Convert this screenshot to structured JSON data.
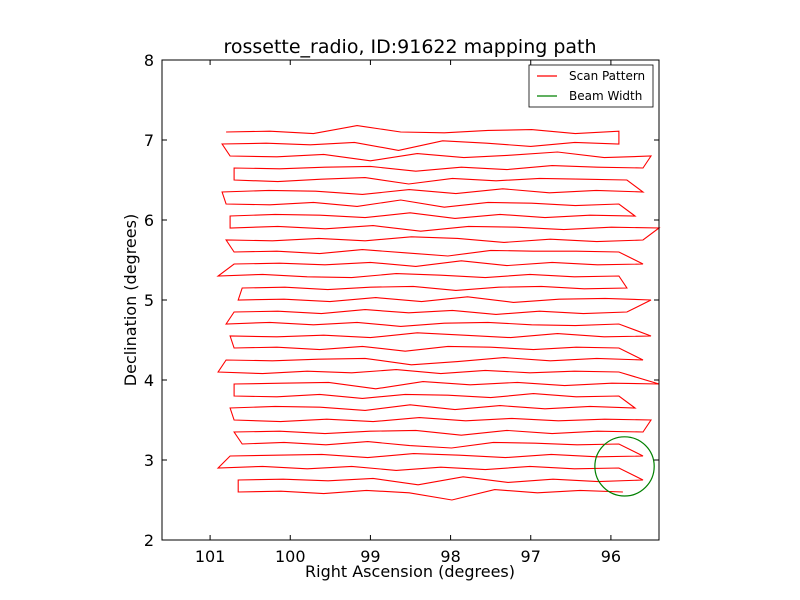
{
  "chart_data": {
    "type": "line",
    "title": "rossette_radio, ID:91622 mapping path",
    "xlabel": "Right Ascension (degrees)",
    "ylabel": "Declination (degrees)",
    "xlim": [
      101.6,
      95.4
    ],
    "ylim": [
      2,
      8
    ],
    "x_inverted": true,
    "xticks": [
      101,
      100,
      99,
      98,
      97,
      96
    ],
    "yticks": [
      2,
      3,
      4,
      5,
      6,
      7,
      8
    ],
    "grid": false,
    "legend": {
      "placement": "top-right",
      "entries": [
        {
          "label": "Scan Pattern",
          "color": "#ff0000"
        },
        {
          "label": "Beam Width",
          "color": "#008000"
        }
      ]
    },
    "series": [
      {
        "name": "Scan Pattern",
        "color": "#ff0000",
        "rows": [
          {
            "dec": 7.1,
            "ra_start": 100.8,
            "ra_end": 95.9,
            "jitter": [
              0,
              0.01,
              -0.02,
              0.08,
              0,
              -0.01,
              0.02,
              0.03,
              -0.02,
              0.01
            ]
          },
          {
            "dec": 6.95,
            "ra_start": 95.9,
            "ra_end": 100.85,
            "jitter": [
              0,
              0.02,
              -0.03,
              0.01,
              0.04,
              -0.08,
              0.02,
              -0.01,
              0.01,
              0
            ]
          },
          {
            "dec": 6.8,
            "ra_start": 100.75,
            "ra_end": 95.5,
            "jitter": [
              0,
              -0.01,
              0.02,
              -0.06,
              0.03,
              -0.02,
              0.01,
              0.05,
              -0.02,
              0
            ]
          },
          {
            "dec": 6.65,
            "ra_start": 95.6,
            "ra_end": 100.7,
            "jitter": [
              0,
              0.01,
              0.03,
              -0.02,
              0.01,
              -0.04,
              0.02,
              0.01,
              -0.01,
              0
            ]
          },
          {
            "dec": 6.5,
            "ra_start": 100.7,
            "ra_end": 95.8,
            "jitter": [
              0,
              -0.02,
              0.01,
              0.03,
              -0.05,
              0.02,
              -0.01,
              0.02,
              0.01,
              0
            ]
          },
          {
            "dec": 6.35,
            "ra_start": 95.6,
            "ra_end": 100.85,
            "jitter": [
              0,
              0.02,
              -0.01,
              0.04,
              -0.02,
              0.03,
              -0.03,
              0.01,
              0.02,
              0
            ]
          },
          {
            "dec": 6.2,
            "ra_start": 100.8,
            "ra_end": 95.9,
            "jitter": [
              0,
              -0.01,
              0.02,
              -0.03,
              0.05,
              -0.04,
              0.02,
              0.01,
              -0.02,
              0
            ]
          },
          {
            "dec": 6.05,
            "ra_start": 95.7,
            "ra_end": 100.75,
            "jitter": [
              0,
              0.01,
              -0.02,
              0.02,
              -0.03,
              0.04,
              -0.02,
              0.01,
              0.02,
              0
            ]
          },
          {
            "dec": 5.9,
            "ra_start": 100.75,
            "ra_end": 95.4,
            "jitter": [
              0,
              0.02,
              -0.01,
              0.03,
              -0.04,
              0.02,
              0.01,
              -0.02,
              0.01,
              0
            ]
          },
          {
            "dec": 5.75,
            "ra_start": 95.6,
            "ra_end": 100.8,
            "jitter": [
              0,
              -0.02,
              0.01,
              -0.03,
              0.02,
              0.04,
              -0.01,
              0.02,
              -0.01,
              0
            ]
          },
          {
            "dec": 5.6,
            "ra_start": 100.7,
            "ra_end": 95.9,
            "jitter": [
              0,
              0.01,
              -0.02,
              0.03,
              -0.01,
              -0.05,
              0.02,
              0.01,
              0.01,
              0
            ]
          },
          {
            "dec": 5.45,
            "ra_start": 95.6,
            "ra_end": 100.7,
            "jitter": [
              0,
              -0.01,
              0.02,
              -0.02,
              0.04,
              -0.03,
              0.02,
              -0.01,
              0.01,
              0
            ]
          },
          {
            "dec": 5.3,
            "ra_start": 100.9,
            "ra_end": 95.9,
            "jitter": [
              0,
              0.02,
              -0.01,
              -0.02,
              0.03,
              0.01,
              -0.02,
              0.02,
              -0.01,
              0
            ]
          },
          {
            "dec": 5.15,
            "ra_start": 95.8,
            "ra_end": 100.6,
            "jitter": [
              0,
              -0.01,
              0.02,
              0.01,
              -0.03,
              0.02,
              0.01,
              -0.02,
              0.01,
              0
            ]
          },
          {
            "dec": 5.0,
            "ra_start": 100.65,
            "ra_end": 95.5,
            "jitter": [
              0,
              0.01,
              -0.02,
              0.03,
              -0.02,
              0.04,
              -0.03,
              0.01,
              0.02,
              0
            ]
          },
          {
            "dec": 4.85,
            "ra_start": 95.8,
            "ra_end": 100.7,
            "jitter": [
              0,
              -0.02,
              0.01,
              -0.03,
              0.02,
              -0.01,
              0.03,
              -0.02,
              0.01,
              0
            ]
          },
          {
            "dec": 4.7,
            "ra_start": 100.8,
            "ra_end": 95.9,
            "jitter": [
              0,
              0.02,
              -0.01,
              0.02,
              -0.03,
              0.01,
              0.02,
              -0.01,
              -0.02,
              0
            ]
          },
          {
            "dec": 4.55,
            "ra_start": 95.5,
            "ra_end": 100.75,
            "jitter": [
              0,
              -0.01,
              0.03,
              -0.02,
              0.01,
              0.04,
              -0.02,
              0.01,
              -0.01,
              0
            ]
          },
          {
            "dec": 4.4,
            "ra_start": 100.7,
            "ra_end": 95.9,
            "jitter": [
              0,
              0.01,
              -0.02,
              0.02,
              -0.04,
              0.02,
              0.01,
              -0.02,
              0.01,
              0
            ]
          },
          {
            "dec": 4.25,
            "ra_start": 95.6,
            "ra_end": 100.8,
            "jitter": [
              0,
              0.02,
              -0.01,
              0.03,
              -0.02,
              -0.06,
              0.02,
              0.01,
              -0.01,
              0
            ]
          },
          {
            "dec": 4.1,
            "ra_start": 100.9,
            "ra_end": 95.9,
            "jitter": [
              0,
              -0.02,
              0.01,
              -0.01,
              0.03,
              -0.02,
              0.02,
              -0.01,
              0.01,
              0
            ]
          },
          {
            "dec": 3.95,
            "ra_start": 95.4,
            "ra_end": 100.7,
            "jitter": [
              0,
              0.01,
              -0.02,
              0.02,
              -0.01,
              0.03,
              -0.06,
              0.02,
              0.01,
              0
            ]
          },
          {
            "dec": 3.8,
            "ra_start": 100.7,
            "ra_end": 95.9,
            "jitter": [
              0,
              -0.01,
              0.02,
              -0.03,
              0.02,
              0.01,
              -0.02,
              0.03,
              -0.01,
              0
            ]
          },
          {
            "dec": 3.65,
            "ra_start": 95.7,
            "ra_end": 100.75,
            "jitter": [
              0,
              0.02,
              -0.01,
              0.03,
              -0.02,
              0.04,
              -0.03,
              0.01,
              0.02,
              0
            ]
          },
          {
            "dec": 3.5,
            "ra_start": 100.7,
            "ra_end": 95.5,
            "jitter": [
              0,
              -0.02,
              0.01,
              -0.02,
              0.03,
              -0.01,
              0.02,
              -0.01,
              0.01,
              0
            ]
          },
          {
            "dec": 3.35,
            "ra_start": 95.6,
            "ra_end": 100.7,
            "jitter": [
              0,
              0.01,
              -0.02,
              0.02,
              -0.04,
              0.02,
              0.01,
              -0.02,
              0.01,
              0
            ]
          },
          {
            "dec": 3.2,
            "ra_start": 100.6,
            "ra_end": 95.9,
            "jitter": [
              0,
              0.02,
              -0.01,
              0.03,
              -0.02,
              -0.05,
              0.02,
              0.01,
              -0.01,
              0
            ]
          },
          {
            "dec": 3.05,
            "ra_start": 95.6,
            "ra_end": 100.75,
            "jitter": [
              0,
              -0.01,
              0.02,
              -0.02,
              0.01,
              0.03,
              -0.02,
              0.02,
              0.01,
              0
            ]
          },
          {
            "dec": 2.9,
            "ra_start": 100.9,
            "ra_end": 95.9,
            "jitter": [
              0,
              0.02,
              -0.01,
              0.02,
              -0.03,
              0.01,
              -0.02,
              0.02,
              -0.01,
              0
            ]
          },
          {
            "dec": 2.75,
            "ra_start": 95.6,
            "ra_end": 100.65,
            "jitter": [
              0,
              -0.02,
              0.01,
              -0.03,
              0.04,
              -0.06,
              0.02,
              -0.01,
              0.01,
              0
            ]
          },
          {
            "dec": 2.6,
            "ra_start": 100.65,
            "ra_end": 95.85,
            "jitter": [
              0,
              0.01,
              -0.02,
              0.02,
              -0.01,
              -0.1,
              0.03,
              -0.01,
              0.02,
              0
            ]
          }
        ]
      },
      {
        "name": "Beam Width",
        "color": "#008000",
        "type": "circle",
        "center": [
          95.83,
          2.92
        ],
        "radius_deg": 0.37
      }
    ]
  }
}
